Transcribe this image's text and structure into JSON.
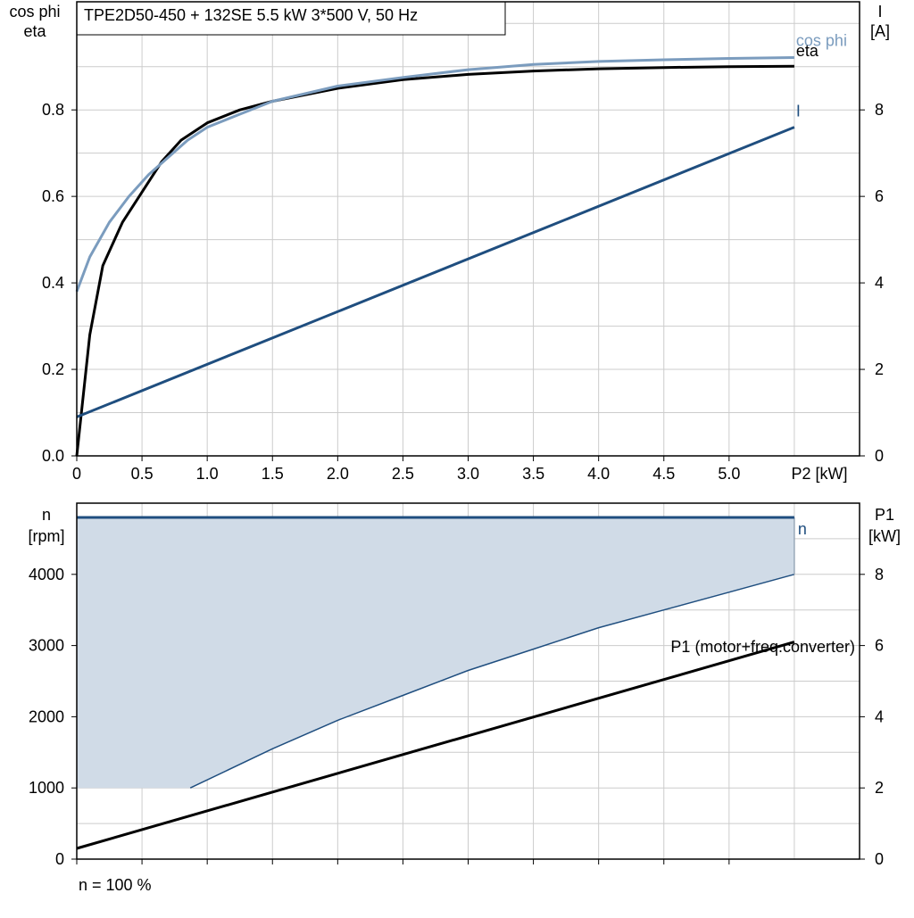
{
  "chart_data": [
    {
      "type": "line",
      "title": "TPE2D50-450 + 132SE   5.5 kW   3*500 V, 50 Hz",
      "x_axis": {
        "label": "P2 [kW]",
        "range": [
          0,
          6.0
        ],
        "ticks": [
          0,
          0.5,
          1.0,
          1.5,
          2.0,
          2.5,
          3.0,
          3.5,
          4.0,
          4.5,
          5.0
        ],
        "tick_labels": [
          "0",
          "0.5",
          "1.0",
          "1.5",
          "2.0",
          "2.5",
          "3.0",
          "3.5",
          "4.0",
          "4.5",
          "5.0"
        ]
      },
      "y_left": {
        "label_line1": "cos phi",
        "label_line2": "eta",
        "range": [
          0,
          1.05
        ],
        "ticks": [
          0,
          0.2,
          0.4,
          0.6,
          0.8
        ],
        "tick_labels": [
          "0.0",
          "0.2",
          "0.4",
          "0.6",
          "0.8"
        ]
      },
      "y_right": {
        "label_line1": "I",
        "label_line2": "[A]",
        "range": [
          0,
          10.5
        ],
        "ticks": [
          0,
          2,
          4,
          6,
          8
        ],
        "tick_labels": [
          "0",
          "2",
          "4",
          "6",
          "8"
        ]
      },
      "grid": true,
      "series": [
        {
          "name": "eta",
          "axis": "left",
          "color": "#000000",
          "x": [
            0,
            0.1,
            0.2,
            0.35,
            0.5,
            0.65,
            0.8,
            1.0,
            1.25,
            1.5,
            2.0,
            2.5,
            3.0,
            3.5,
            4.0,
            4.5,
            5.0,
            5.5
          ],
          "y": [
            0,
            0.28,
            0.44,
            0.54,
            0.61,
            0.68,
            0.73,
            0.77,
            0.8,
            0.82,
            0.85,
            0.87,
            0.882,
            0.89,
            0.895,
            0.898,
            0.9,
            0.901
          ]
        },
        {
          "name": "cos phi",
          "axis": "left",
          "color": "#7b9cbe",
          "x": [
            0,
            0.1,
            0.25,
            0.4,
            0.55,
            0.7,
            0.85,
            1.0,
            1.25,
            1.5,
            2.0,
            2.5,
            3.0,
            3.5,
            4.0,
            4.5,
            5.0,
            5.5
          ],
          "y": [
            0.38,
            0.46,
            0.54,
            0.6,
            0.65,
            0.69,
            0.73,
            0.76,
            0.79,
            0.82,
            0.855,
            0.875,
            0.893,
            0.905,
            0.912,
            0.916,
            0.919,
            0.921
          ]
        },
        {
          "name": "I",
          "axis": "right",
          "color": "#1f4e7f",
          "x": [
            0,
            5.5
          ],
          "y": [
            0.9,
            7.6
          ]
        }
      ]
    },
    {
      "type": "area",
      "x_axis": {
        "range": [
          0,
          6.0
        ],
        "ticks": [
          0,
          0.5,
          1.0,
          1.5,
          2.0,
          2.5,
          3.0,
          3.5,
          4.0,
          4.5,
          5.0
        ]
      },
      "y_left": {
        "label_line1": "n",
        "label_line2": "[rpm]",
        "range": [
          0,
          5000
        ],
        "ticks": [
          0,
          1000,
          2000,
          3000,
          4000
        ],
        "tick_labels": [
          "0",
          "1000",
          "2000",
          "3000",
          "4000"
        ]
      },
      "y_right": {
        "label_line1": "P1",
        "label_line2": "[kW]",
        "range": [
          0,
          10
        ],
        "ticks": [
          0,
          2,
          4,
          6,
          8
        ],
        "tick_labels": [
          "0",
          "2",
          "4",
          "6",
          "8"
        ]
      },
      "grid": true,
      "operating_area": {
        "color": "#d0dbe7",
        "boundary_color": "#1f4e7f",
        "upper_rpm": 4800,
        "lower_x": [
          0.87,
          1.5,
          2.0,
          2.5,
          3.0,
          3.5,
          4.0,
          4.5,
          5.0,
          5.5
        ],
        "lower_rpm": [
          1000,
          1550,
          1950,
          2300,
          2650,
          2950,
          3250,
          3500,
          3750,
          4000
        ]
      },
      "series": [
        {
          "name": "n",
          "axis": "left",
          "color": "#1f4e7f",
          "x": [
            0,
            5.5
          ],
          "y": [
            4800,
            4800
          ]
        },
        {
          "name": "P1 (motor+freq.converter)",
          "axis": "right",
          "color": "#000000",
          "x": [
            0,
            5.5
          ],
          "y": [
            0.3,
            6.1
          ]
        }
      ],
      "footnote": "n = 100 %"
    }
  ]
}
